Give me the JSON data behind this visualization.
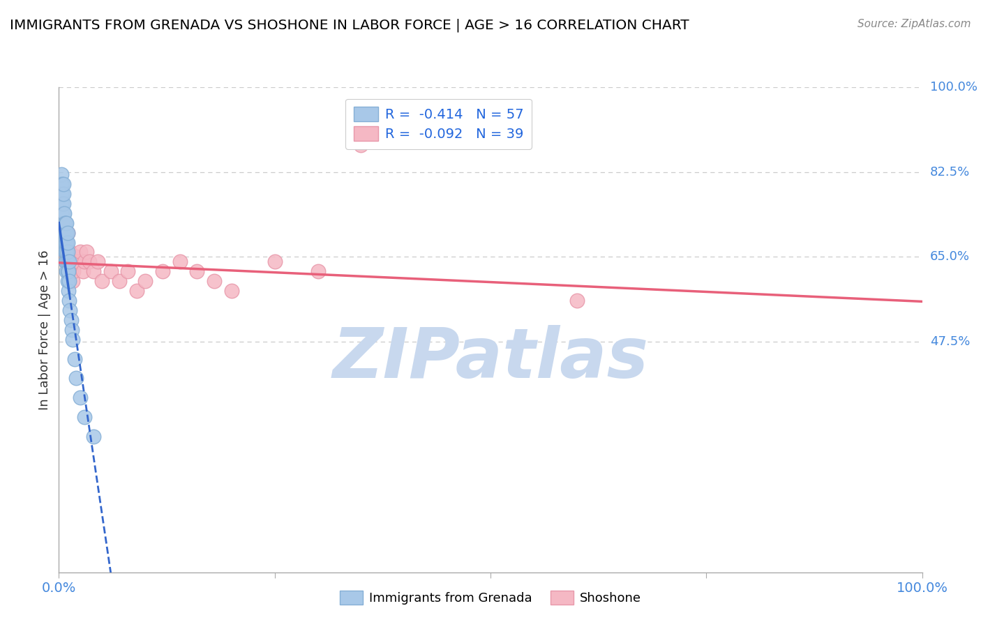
{
  "title": "IMMIGRANTS FROM GRENADA VS SHOSHONE IN LABOR FORCE | AGE > 16 CORRELATION CHART",
  "source": "Source: ZipAtlas.com",
  "ylabel": "In Labor Force | Age > 16",
  "xlim": [
    0.0,
    1.0
  ],
  "ylim": [
    0.0,
    1.0
  ],
  "xtick_positions": [
    0.0,
    0.25,
    0.5,
    0.75,
    1.0
  ],
  "xtick_labels": [
    "0.0%",
    "",
    "",
    "",
    "100.0%"
  ],
  "ytick_positions": [
    1.0,
    0.825,
    0.65,
    0.475
  ],
  "ytick_labels": [
    "100.0%",
    "82.5%",
    "65.0%",
    "47.5%"
  ],
  "grenada_R": -0.414,
  "grenada_N": 57,
  "shoshone_R": -0.092,
  "shoshone_N": 39,
  "grenada_color": "#a8c8e8",
  "grenada_edge_color": "#85afd6",
  "grenada_line_color": "#3366cc",
  "shoshone_color": "#f5b8c4",
  "shoshone_edge_color": "#e898aa",
  "shoshone_line_color": "#e8607a",
  "legend_text_color": "#2266dd",
  "grid_color": "#cccccc",
  "axis_color": "#aaaaaa",
  "right_label_color": "#4488dd",
  "watermark_text": "ZIPatlas",
  "watermark_color": "#c8d8ee",
  "grenada_x": [
    0.002,
    0.002,
    0.003,
    0.003,
    0.003,
    0.003,
    0.003,
    0.004,
    0.004,
    0.004,
    0.004,
    0.004,
    0.005,
    0.005,
    0.005,
    0.005,
    0.005,
    0.005,
    0.006,
    0.006,
    0.006,
    0.006,
    0.007,
    0.007,
    0.007,
    0.007,
    0.008,
    0.008,
    0.008,
    0.008,
    0.008,
    0.009,
    0.009,
    0.009,
    0.009,
    0.009,
    0.009,
    0.01,
    0.01,
    0.01,
    0.01,
    0.01,
    0.01,
    0.011,
    0.011,
    0.012,
    0.012,
    0.012,
    0.013,
    0.014,
    0.015,
    0.016,
    0.018,
    0.02,
    0.025,
    0.03,
    0.04
  ],
  "grenada_y": [
    0.78,
    0.8,
    0.74,
    0.76,
    0.78,
    0.8,
    0.82,
    0.72,
    0.74,
    0.76,
    0.78,
    0.8,
    0.7,
    0.72,
    0.74,
    0.76,
    0.78,
    0.8,
    0.68,
    0.7,
    0.72,
    0.74,
    0.66,
    0.68,
    0.7,
    0.72,
    0.64,
    0.66,
    0.68,
    0.7,
    0.72,
    0.62,
    0.64,
    0.66,
    0.68,
    0.7,
    0.72,
    0.6,
    0.62,
    0.64,
    0.66,
    0.68,
    0.7,
    0.58,
    0.62,
    0.56,
    0.6,
    0.64,
    0.54,
    0.52,
    0.5,
    0.48,
    0.44,
    0.4,
    0.36,
    0.32,
    0.28
  ],
  "shoshone_x": [
    0.003,
    0.004,
    0.005,
    0.007,
    0.008,
    0.009,
    0.01,
    0.01,
    0.012,
    0.013,
    0.014,
    0.015,
    0.016,
    0.017,
    0.018,
    0.02,
    0.022,
    0.025,
    0.028,
    0.03,
    0.032,
    0.035,
    0.04,
    0.045,
    0.05,
    0.06,
    0.07,
    0.08,
    0.09,
    0.1,
    0.12,
    0.14,
    0.16,
    0.18,
    0.2,
    0.25,
    0.3,
    0.35,
    0.6
  ],
  "shoshone_y": [
    0.72,
    0.68,
    0.7,
    0.66,
    0.64,
    0.68,
    0.66,
    0.7,
    0.64,
    0.66,
    0.62,
    0.64,
    0.6,
    0.62,
    0.64,
    0.65,
    0.64,
    0.66,
    0.62,
    0.64,
    0.66,
    0.64,
    0.62,
    0.64,
    0.6,
    0.62,
    0.6,
    0.62,
    0.58,
    0.6,
    0.62,
    0.64,
    0.62,
    0.6,
    0.58,
    0.64,
    0.62,
    0.88,
    0.56
  ],
  "grenada_trend_x0": 0.0,
  "grenada_trend_y0": 0.72,
  "grenada_trend_slope": -12.0,
  "shoshone_trend_x0": 0.0,
  "shoshone_trend_y0": 0.638,
  "shoshone_trend_slope": -0.08
}
